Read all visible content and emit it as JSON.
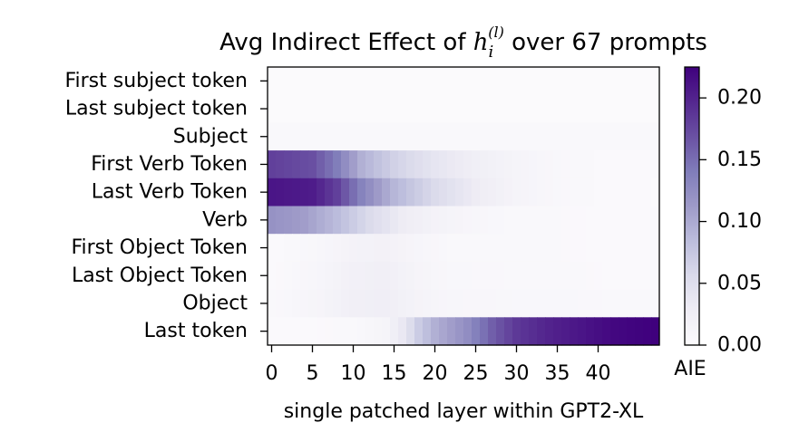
{
  "chart_data": {
    "type": "heatmap",
    "title_prefix": "Avg Indirect Effect of ",
    "title_var_main": "h",
    "title_var_sub": "i",
    "title_var_sup": "(l)",
    "title_suffix": " over 67 prompts",
    "xlabel": "single patched layer within GPT2-XL",
    "colorbar_label": "AIE",
    "x_ticks": [
      "0",
      "5",
      "10",
      "15",
      "20",
      "25",
      "30",
      "35",
      "40"
    ],
    "x_tick_values": [
      0,
      5,
      10,
      15,
      20,
      25,
      30,
      35,
      40
    ],
    "n_layers": 48,
    "colorbar_ticks": [
      "0.00",
      "0.05",
      "0.10",
      "0.15",
      "0.20"
    ],
    "colorbar_tick_values": [
      0,
      0.05,
      0.1,
      0.15,
      0.2
    ],
    "vmin": 0,
    "vmax": 0.225,
    "colormap": [
      "#fcfbfd",
      "#efedf5",
      "#dadaeb",
      "#bcbddc",
      "#9e9ac8",
      "#807dba",
      "#6a51a3",
      "#54278f",
      "#3f007d"
    ],
    "rows": [
      {
        "label": "First subject token",
        "anchors": [
          [
            0,
            0.002
          ],
          [
            47,
            0.002
          ]
        ]
      },
      {
        "label": "Last subject token",
        "anchors": [
          [
            0,
            0.003
          ],
          [
            47,
            0.003
          ]
        ]
      },
      {
        "label": "Subject",
        "anchors": [
          [
            0,
            0.006
          ],
          [
            47,
            0.006
          ]
        ]
      },
      {
        "label": "First Verb Token",
        "anchors": [
          [
            0,
            0.18
          ],
          [
            5,
            0.17
          ],
          [
            8,
            0.14
          ],
          [
            11,
            0.095
          ],
          [
            15,
            0.065
          ],
          [
            20,
            0.04
          ],
          [
            25,
            0.025
          ],
          [
            30,
            0.015
          ],
          [
            35,
            0.008
          ],
          [
            40,
            0.005
          ],
          [
            47,
            0.004
          ]
        ]
      },
      {
        "label": "Last Verb Token",
        "anchors": [
          [
            0,
            0.21
          ],
          [
            5,
            0.205
          ],
          [
            8,
            0.18
          ],
          [
            11,
            0.135
          ],
          [
            15,
            0.09
          ],
          [
            20,
            0.055
          ],
          [
            25,
            0.03
          ],
          [
            30,
            0.015
          ],
          [
            35,
            0.008
          ],
          [
            40,
            0.005
          ],
          [
            47,
            0.003
          ]
        ]
      },
      {
        "label": "Verb",
        "anchors": [
          [
            0,
            0.12
          ],
          [
            4,
            0.11
          ],
          [
            8,
            0.085
          ],
          [
            12,
            0.055
          ],
          [
            16,
            0.03
          ],
          [
            20,
            0.018
          ],
          [
            25,
            0.01
          ],
          [
            30,
            0.006
          ],
          [
            47,
            0.004
          ]
        ]
      },
      {
        "label": "First Object Token",
        "anchors": [
          [
            0,
            0.004
          ],
          [
            6,
            0.01
          ],
          [
            10,
            0.018
          ],
          [
            14,
            0.02
          ],
          [
            18,
            0.012
          ],
          [
            22,
            0.007
          ],
          [
            47,
            0.004
          ]
        ]
      },
      {
        "label": "Last Object Token",
        "anchors": [
          [
            0,
            0.004
          ],
          [
            6,
            0.012
          ],
          [
            10,
            0.022
          ],
          [
            14,
            0.024
          ],
          [
            18,
            0.014
          ],
          [
            22,
            0.008
          ],
          [
            47,
            0.004
          ]
        ]
      },
      {
        "label": "Object",
        "anchors": [
          [
            0,
            0.006
          ],
          [
            6,
            0.014
          ],
          [
            10,
            0.024
          ],
          [
            14,
            0.026
          ],
          [
            18,
            0.016
          ],
          [
            22,
            0.01
          ],
          [
            47,
            0.006
          ]
        ]
      },
      {
        "label": "Last token",
        "anchors": [
          [
            0,
            0.004
          ],
          [
            10,
            0.006
          ],
          [
            14,
            0.015
          ],
          [
            16,
            0.035
          ],
          [
            18,
            0.07
          ],
          [
            20,
            0.095
          ],
          [
            24,
            0.125
          ],
          [
            27,
            0.16
          ],
          [
            30,
            0.185
          ],
          [
            34,
            0.2
          ],
          [
            38,
            0.21
          ],
          [
            42,
            0.22
          ],
          [
            47,
            0.225
          ]
        ]
      }
    ]
  }
}
